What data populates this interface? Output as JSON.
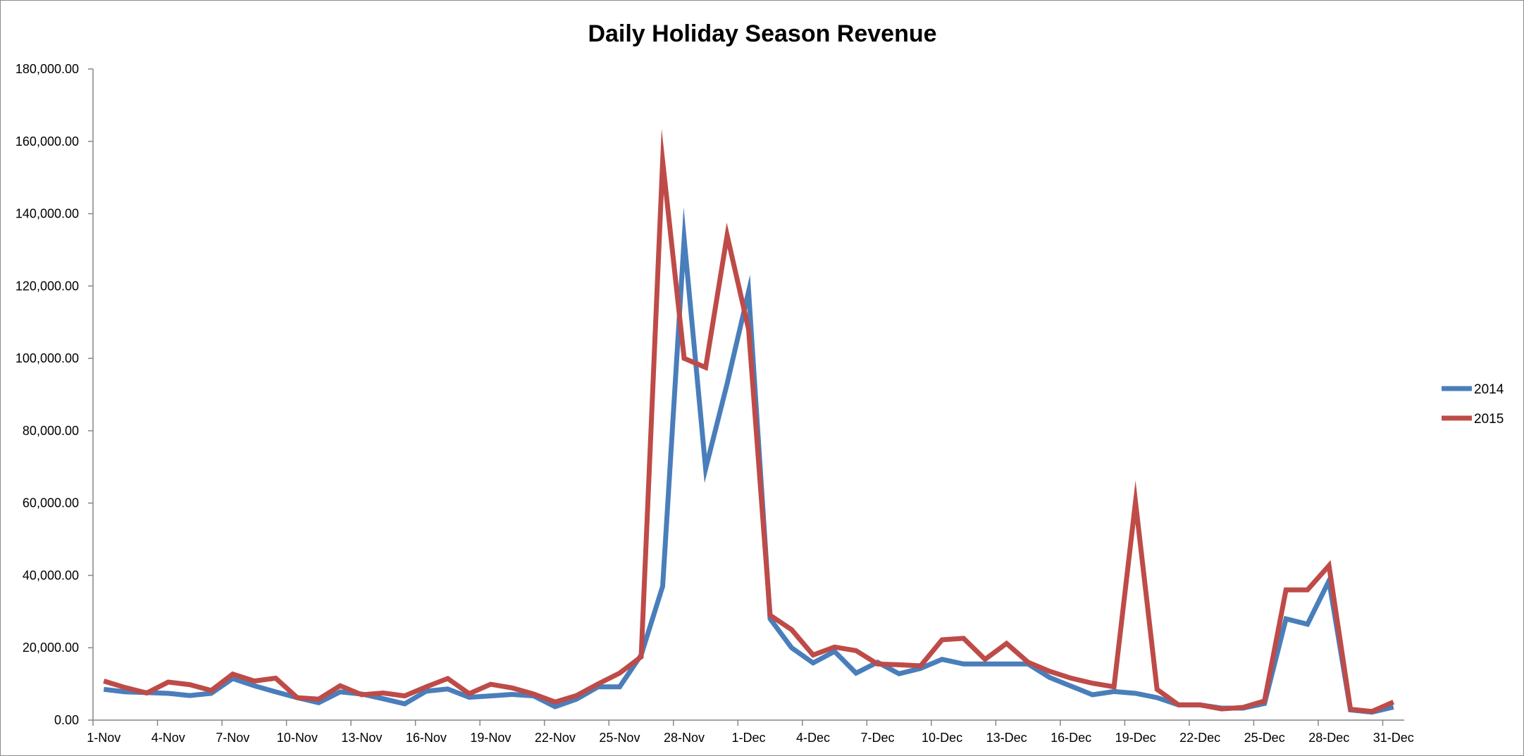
{
  "chart_data": {
    "type": "line",
    "title": "Daily Holiday Season Revenue",
    "xlabel": "",
    "ylabel": "",
    "ylim": [
      0,
      180000
    ],
    "y_ticks": [
      0,
      20000,
      40000,
      60000,
      80000,
      100000,
      120000,
      140000,
      160000,
      180000
    ],
    "y_tick_labels": [
      "0.00",
      "20,000.00",
      "40,000.00",
      "60,000.00",
      "80,000.00",
      "100,000.00",
      "120,000.00",
      "140,000.00",
      "160,000.00",
      "180,000.00"
    ],
    "grid": false,
    "legend_position": "right",
    "categories": [
      "1-Nov",
      "2-Nov",
      "3-Nov",
      "4-Nov",
      "5-Nov",
      "6-Nov",
      "7-Nov",
      "8-Nov",
      "9-Nov",
      "10-Nov",
      "11-Nov",
      "12-Nov",
      "13-Nov",
      "14-Nov",
      "15-Nov",
      "16-Nov",
      "17-Nov",
      "18-Nov",
      "19-Nov",
      "20-Nov",
      "21-Nov",
      "22-Nov",
      "23-Nov",
      "24-Nov",
      "25-Nov",
      "26-Nov",
      "27-Nov",
      "28-Nov",
      "29-Nov",
      "30-Nov",
      "1-Dec",
      "2-Dec",
      "3-Dec",
      "4-Dec",
      "5-Dec",
      "6-Dec",
      "7-Dec",
      "8-Dec",
      "9-Dec",
      "10-Dec",
      "11-Dec",
      "12-Dec",
      "13-Dec",
      "14-Dec",
      "15-Dec",
      "16-Dec",
      "17-Dec",
      "18-Dec",
      "19-Dec",
      "20-Dec",
      "21-Dec",
      "22-Dec",
      "23-Dec",
      "24-Dec",
      "25-Dec",
      "26-Dec",
      "27-Dec",
      "28-Dec",
      "29-Dec",
      "30-Dec",
      "31-Dec"
    ],
    "tick_every": 3,
    "series": [
      {
        "name": "2014",
        "color": "#4a7ebb",
        "values": [
          8500,
          7800,
          7600,
          7400,
          6800,
          7400,
          11500,
          9500,
          7800,
          6200,
          4800,
          7800,
          7200,
          5900,
          4500,
          8000,
          8600,
          6300,
          6700,
          7100,
          6700,
          3700,
          5800,
          9200,
          9200,
          18000,
          37000,
          133000,
          69500,
          93000,
          118500,
          28000,
          20000,
          15800,
          19000,
          13000,
          16000,
          12800,
          14300,
          16800,
          15500,
          15500,
          15500,
          15500,
          11800,
          9400,
          7000,
          7900,
          7400,
          6200,
          4200,
          4200,
          3300,
          3300,
          4600,
          28000,
          26500,
          38500,
          2800,
          2200,
          3600
        ]
      },
      {
        "name": "2015",
        "color": "#be4b48",
        "values": [
          10800,
          9000,
          7500,
          10500,
          9800,
          8200,
          12700,
          10800,
          11600,
          6200,
          5800,
          9500,
          7000,
          7500,
          6700,
          9200,
          11500,
          7300,
          9900,
          8900,
          7200,
          5000,
          6800,
          10000,
          13000,
          17500,
          154500,
          100000,
          97500,
          134000,
          108000,
          29000,
          25000,
          18000,
          20200,
          19200,
          15500,
          15300,
          15000,
          22200,
          22600,
          16800,
          21200,
          16000,
          13500,
          11600,
          10200,
          9200,
          60300,
          8500,
          4200,
          4200,
          3100,
          3500,
          5300,
          36000,
          36000,
          42700,
          3000,
          2400,
          5000
        ]
      }
    ]
  }
}
